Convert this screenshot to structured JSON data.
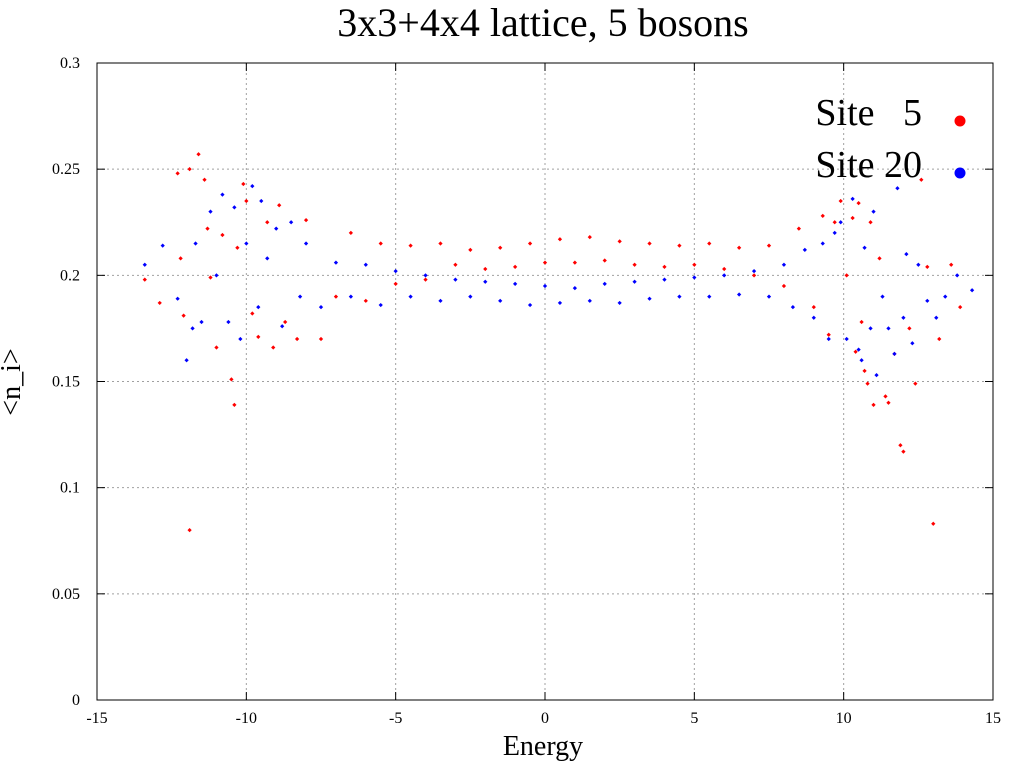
{
  "chart_data": {
    "type": "scatter",
    "title": "3x3+4x4 lattice, 5 bosons",
    "xlabel": "Energy",
    "ylabel": "<n_i>",
    "xlim": [
      -15,
      15
    ],
    "ylim": [
      0,
      0.3
    ],
    "xticks": [
      -15,
      -10,
      -5,
      0,
      5,
      10,
      15
    ],
    "yticks": [
      0,
      0.05,
      0.1,
      0.15,
      0.2,
      0.25,
      0.3
    ],
    "xtick_labels": [
      "-15",
      "-10",
      "-5",
      "0",
      "5",
      "10",
      "15"
    ],
    "ytick_labels": [
      "0",
      "0.05",
      "0.1",
      "0.15",
      "0.2",
      "0.25",
      "0.3"
    ],
    "grid": true,
    "legend_position": "top-right",
    "series": [
      {
        "name": "Site   5",
        "color": "#ff0000",
        "points": [
          [
            -13.4,
            0.198
          ],
          [
            -12.9,
            0.187
          ],
          [
            -12.3,
            0.248
          ],
          [
            -12.2,
            0.208
          ],
          [
            -12.1,
            0.181
          ],
          [
            -11.9,
            0.08
          ],
          [
            -11.9,
            0.25
          ],
          [
            -11.6,
            0.257
          ],
          [
            -11.4,
            0.245
          ],
          [
            -11.3,
            0.222
          ],
          [
            -11.2,
            0.199
          ],
          [
            -11.0,
            0.166
          ],
          [
            -10.8,
            0.219
          ],
          [
            -10.5,
            0.151
          ],
          [
            -10.4,
            0.139
          ],
          [
            -10.3,
            0.213
          ],
          [
            -10.1,
            0.243
          ],
          [
            -10.0,
            0.235
          ],
          [
            -9.8,
            0.182
          ],
          [
            -9.6,
            0.171
          ],
          [
            -9.3,
            0.225
          ],
          [
            -9.1,
            0.166
          ],
          [
            -8.9,
            0.233
          ],
          [
            -8.7,
            0.178
          ],
          [
            -8.3,
            0.17
          ],
          [
            -8.0,
            0.226
          ],
          [
            -7.5,
            0.17
          ],
          [
            -7.0,
            0.19
          ],
          [
            -6.5,
            0.22
          ],
          [
            -6.0,
            0.188
          ],
          [
            -5.5,
            0.215
          ],
          [
            -5.0,
            0.196
          ],
          [
            -4.5,
            0.214
          ],
          [
            -4.0,
            0.198
          ],
          [
            -3.5,
            0.215
          ],
          [
            -3.0,
            0.205
          ],
          [
            -2.5,
            0.212
          ],
          [
            -2.0,
            0.203
          ],
          [
            -1.5,
            0.213
          ],
          [
            -1.0,
            0.204
          ],
          [
            -0.5,
            0.215
          ],
          [
            0.0,
            0.206
          ],
          [
            0.5,
            0.217
          ],
          [
            1.0,
            0.206
          ],
          [
            1.5,
            0.218
          ],
          [
            2.0,
            0.207
          ],
          [
            2.5,
            0.216
          ],
          [
            3.0,
            0.205
          ],
          [
            3.5,
            0.215
          ],
          [
            4.0,
            0.204
          ],
          [
            4.5,
            0.214
          ],
          [
            5.0,
            0.205
          ],
          [
            5.5,
            0.215
          ],
          [
            6.0,
            0.203
          ],
          [
            6.5,
            0.213
          ],
          [
            7.0,
            0.2
          ],
          [
            7.5,
            0.214
          ],
          [
            8.0,
            0.195
          ],
          [
            8.5,
            0.222
          ],
          [
            9.0,
            0.185
          ],
          [
            9.3,
            0.228
          ],
          [
            9.5,
            0.172
          ],
          [
            9.7,
            0.225
          ],
          [
            9.9,
            0.235
          ],
          [
            10.1,
            0.2
          ],
          [
            10.3,
            0.227
          ],
          [
            10.4,
            0.164
          ],
          [
            10.5,
            0.234
          ],
          [
            10.6,
            0.178
          ],
          [
            10.7,
            0.155
          ],
          [
            10.8,
            0.149
          ],
          [
            10.9,
            0.225
          ],
          [
            11.0,
            0.139
          ],
          [
            11.2,
            0.208
          ],
          [
            11.4,
            0.143
          ],
          [
            11.5,
            0.14
          ],
          [
            11.7,
            0.163
          ],
          [
            11.9,
            0.12
          ],
          [
            12.0,
            0.117
          ],
          [
            12.2,
            0.175
          ],
          [
            12.4,
            0.149
          ],
          [
            12.6,
            0.245
          ],
          [
            12.8,
            0.204
          ],
          [
            13.0,
            0.083
          ],
          [
            13.2,
            0.17
          ],
          [
            13.6,
            0.205
          ],
          [
            13.9,
            0.185
          ]
        ]
      },
      {
        "name": "Site 20",
        "color": "#0000ff",
        "points": [
          [
            -13.4,
            0.205
          ],
          [
            -12.8,
            0.214
          ],
          [
            -12.3,
            0.189
          ],
          [
            -12.0,
            0.16
          ],
          [
            -11.8,
            0.175
          ],
          [
            -11.7,
            0.215
          ],
          [
            -11.5,
            0.178
          ],
          [
            -11.2,
            0.23
          ],
          [
            -11.0,
            0.2
          ],
          [
            -10.8,
            0.238
          ],
          [
            -10.6,
            0.178
          ],
          [
            -10.4,
            0.232
          ],
          [
            -10.2,
            0.17
          ],
          [
            -10.0,
            0.215
          ],
          [
            -9.8,
            0.242
          ],
          [
            -9.6,
            0.185
          ],
          [
            -9.5,
            0.235
          ],
          [
            -9.3,
            0.208
          ],
          [
            -9.0,
            0.222
          ],
          [
            -8.8,
            0.176
          ],
          [
            -8.5,
            0.225
          ],
          [
            -8.2,
            0.19
          ],
          [
            -8.0,
            0.215
          ],
          [
            -7.5,
            0.185
          ],
          [
            -7.0,
            0.206
          ],
          [
            -6.5,
            0.19
          ],
          [
            -6.0,
            0.205
          ],
          [
            -5.5,
            0.186
          ],
          [
            -5.0,
            0.202
          ],
          [
            -4.5,
            0.19
          ],
          [
            -4.0,
            0.2
          ],
          [
            -3.5,
            0.188
          ],
          [
            -3.0,
            0.198
          ],
          [
            -2.5,
            0.19
          ],
          [
            -2.0,
            0.197
          ],
          [
            -1.5,
            0.188
          ],
          [
            -1.0,
            0.196
          ],
          [
            -0.5,
            0.186
          ],
          [
            0.0,
            0.195
          ],
          [
            0.5,
            0.187
          ],
          [
            1.0,
            0.194
          ],
          [
            1.5,
            0.188
          ],
          [
            2.0,
            0.196
          ],
          [
            2.5,
            0.187
          ],
          [
            3.0,
            0.197
          ],
          [
            3.5,
            0.189
          ],
          [
            4.0,
            0.198
          ],
          [
            4.5,
            0.19
          ],
          [
            5.0,
            0.199
          ],
          [
            5.5,
            0.19
          ],
          [
            6.0,
            0.2
          ],
          [
            6.5,
            0.191
          ],
          [
            7.0,
            0.202
          ],
          [
            7.5,
            0.19
          ],
          [
            8.0,
            0.205
          ],
          [
            8.3,
            0.185
          ],
          [
            8.7,
            0.212
          ],
          [
            9.0,
            0.18
          ],
          [
            9.3,
            0.215
          ],
          [
            9.5,
            0.17
          ],
          [
            9.7,
            0.22
          ],
          [
            9.9,
            0.225
          ],
          [
            10.1,
            0.17
          ],
          [
            10.3,
            0.236
          ],
          [
            10.5,
            0.165
          ],
          [
            10.6,
            0.16
          ],
          [
            10.7,
            0.213
          ],
          [
            10.9,
            0.175
          ],
          [
            11.0,
            0.23
          ],
          [
            11.1,
            0.153
          ],
          [
            11.3,
            0.19
          ],
          [
            11.5,
            0.175
          ],
          [
            11.7,
            0.163
          ],
          [
            11.8,
            0.241
          ],
          [
            12.0,
            0.18
          ],
          [
            12.1,
            0.21
          ],
          [
            12.3,
            0.168
          ],
          [
            12.5,
            0.205
          ],
          [
            12.8,
            0.188
          ],
          [
            13.1,
            0.18
          ],
          [
            13.4,
            0.19
          ],
          [
            13.8,
            0.2
          ],
          [
            14.3,
            0.193
          ]
        ]
      }
    ]
  }
}
